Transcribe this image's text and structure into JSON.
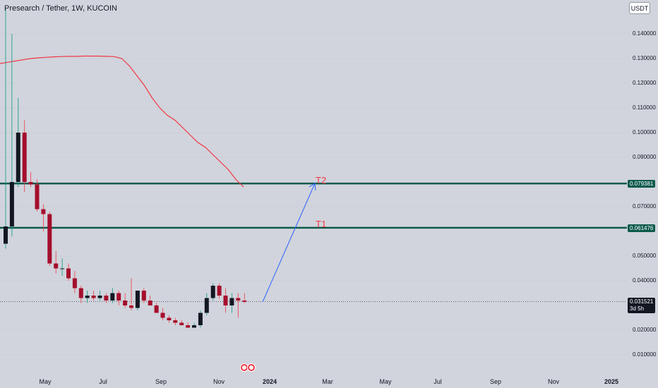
{
  "header": {
    "symbol_title": "Presearch / Tether, 1W, KUCOIN",
    "currency": "USDT"
  },
  "y_axis": {
    "ticks": [
      "0.140000",
      "0.130000",
      "0.120000",
      "0.110000",
      "0.100000",
      "0.090000",
      "0.070000",
      "0.050000",
      "0.040000",
      "0.020000",
      "0.010000"
    ],
    "tick_values": [
      0.14,
      0.13,
      0.12,
      0.11,
      0.1,
      0.09,
      0.07,
      0.05,
      0.04,
      0.02,
      0.01
    ]
  },
  "x_axis": {
    "labels": [
      "May",
      "Jul",
      "Sep",
      "Nov",
      "2024",
      "Mar",
      "May",
      "Jul",
      "Sep",
      "Nov",
      "2025"
    ]
  },
  "price_levels": [
    {
      "label": "T2",
      "value": "0.079381"
    },
    {
      "label": "T1",
      "value": "0.061476"
    }
  ],
  "current_price": {
    "value": "0.031521",
    "countdown": "3d 5h"
  },
  "colors": {
    "up": "#131722",
    "down": "#a50e2d",
    "level_line": "#0b5a4a",
    "ma_line": "#f23645",
    "arrow": "#2962ff"
  },
  "chart_data": {
    "type": "candlestick",
    "interval": "1W",
    "candles": [
      {
        "o": 0.055,
        "h": 0.15,
        "l": 0.053,
        "c": 0.062
      },
      {
        "o": 0.062,
        "h": 0.14,
        "l": 0.058,
        "c": 0.08
      },
      {
        "o": 0.08,
        "h": 0.114,
        "l": 0.078,
        "c": 0.1
      },
      {
        "o": 0.1,
        "h": 0.105,
        "l": 0.076,
        "c": 0.08
      },
      {
        "o": 0.08,
        "h": 0.084,
        "l": 0.078,
        "c": 0.079
      },
      {
        "o": 0.079,
        "h": 0.081,
        "l": 0.068,
        "c": 0.069
      },
      {
        "o": 0.069,
        "h": 0.071,
        "l": 0.06,
        "c": 0.067
      },
      {
        "o": 0.067,
        "h": 0.068,
        "l": 0.046,
        "c": 0.047
      },
      {
        "o": 0.047,
        "h": 0.052,
        "l": 0.043,
        "c": 0.045
      },
      {
        "o": 0.045,
        "h": 0.049,
        "l": 0.042,
        "c": 0.045
      },
      {
        "o": 0.045,
        "h": 0.047,
        "l": 0.04,
        "c": 0.041
      },
      {
        "o": 0.041,
        "h": 0.044,
        "l": 0.035,
        "c": 0.037
      },
      {
        "o": 0.037,
        "h": 0.038,
        "l": 0.031,
        "c": 0.033
      },
      {
        "o": 0.033,
        "h": 0.036,
        "l": 0.031,
        "c": 0.034
      },
      {
        "o": 0.034,
        "h": 0.036,
        "l": 0.032,
        "c": 0.033
      },
      {
        "o": 0.033,
        "h": 0.036,
        "l": 0.032,
        "c": 0.034
      },
      {
        "o": 0.034,
        "h": 0.035,
        "l": 0.031,
        "c": 0.032
      },
      {
        "o": 0.032,
        "h": 0.037,
        "l": 0.031,
        "c": 0.035
      },
      {
        "o": 0.035,
        "h": 0.036,
        "l": 0.03,
        "c": 0.032
      },
      {
        "o": 0.032,
        "h": 0.035,
        "l": 0.029,
        "c": 0.03
      },
      {
        "o": 0.03,
        "h": 0.041,
        "l": 0.028,
        "c": 0.029
      },
      {
        "o": 0.029,
        "h": 0.036,
        "l": 0.028,
        "c": 0.036
      },
      {
        "o": 0.036,
        "h": 0.037,
        "l": 0.031,
        "c": 0.032
      },
      {
        "o": 0.032,
        "h": 0.034,
        "l": 0.03,
        "c": 0.03
      },
      {
        "o": 0.03,
        "h": 0.031,
        "l": 0.027,
        "c": 0.027
      },
      {
        "o": 0.027,
        "h": 0.029,
        "l": 0.024,
        "c": 0.025
      },
      {
        "o": 0.025,
        "h": 0.026,
        "l": 0.023,
        "c": 0.024
      },
      {
        "o": 0.024,
        "h": 0.025,
        "l": 0.022,
        "c": 0.023
      },
      {
        "o": 0.023,
        "h": 0.024,
        "l": 0.022,
        "c": 0.022
      },
      {
        "o": 0.022,
        "h": 0.023,
        "l": 0.021,
        "c": 0.021
      },
      {
        "o": 0.021,
        "h": 0.023,
        "l": 0.021,
        "c": 0.022
      },
      {
        "o": 0.022,
        "h": 0.028,
        "l": 0.021,
        "c": 0.027
      },
      {
        "o": 0.027,
        "h": 0.035,
        "l": 0.026,
        "c": 0.033
      },
      {
        "o": 0.033,
        "h": 0.039,
        "l": 0.032,
        "c": 0.038
      },
      {
        "o": 0.038,
        "h": 0.039,
        "l": 0.033,
        "c": 0.034
      },
      {
        "o": 0.034,
        "h": 0.037,
        "l": 0.027,
        "c": 0.03
      },
      {
        "o": 0.03,
        "h": 0.035,
        "l": 0.027,
        "c": 0.033
      },
      {
        "o": 0.033,
        "h": 0.035,
        "l": 0.025,
        "c": 0.032
      },
      {
        "o": 0.032,
        "h": 0.035,
        "l": 0.031,
        "c": 0.0315
      }
    ],
    "moving_average": [
      0.128,
      0.1285,
      0.129,
      0.1295,
      0.13,
      0.1303,
      0.1305,
      0.1307,
      0.1308,
      0.1309,
      0.1309,
      0.131,
      0.131,
      0.131,
      0.1309,
      0.1308,
      0.13,
      0.127,
      0.123,
      0.119,
      0.114,
      0.11,
      0.107,
      0.105,
      0.102,
      0.099,
      0.096,
      0.094,
      0.091,
      0.088,
      0.085,
      0.081,
      0.078
    ]
  }
}
